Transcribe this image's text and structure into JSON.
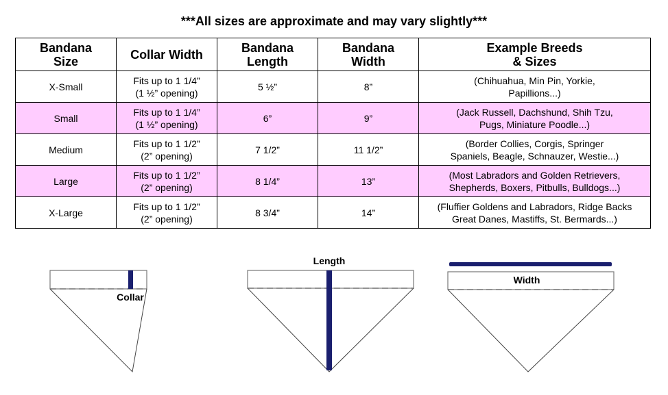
{
  "title": "***All sizes are approximate and may vary slightly***",
  "table": {
    "headers": [
      [
        "Bandana",
        "Size"
      ],
      [
        "Collar Width"
      ],
      [
        "Bandana",
        "Length"
      ],
      [
        "Bandana",
        "Width"
      ],
      [
        "Example Breeds",
        "& Sizes"
      ]
    ],
    "rows": [
      {
        "size": "X-Small",
        "collar": [
          "Fits up to 1 1/4”",
          "(1 ½” opening)"
        ],
        "length": "5 ½”",
        "width": "8”",
        "breeds": [
          "(Chihuahua, Min Pin, Yorkie,",
          "Papillions...)"
        ],
        "highlight": false
      },
      {
        "size": "Small",
        "collar": [
          "Fits up to 1 1/4”",
          "(1 ½” opening)"
        ],
        "length": "6”",
        "width": "9”",
        "breeds": [
          "(Jack Russell, Dachshund, Shih Tzu,",
          "Pugs, Miniature Poodle...)"
        ],
        "highlight": true
      },
      {
        "size": "Medium",
        "collar": [
          "Fits up to 1 1/2”",
          "(2” opening)"
        ],
        "length": "7 1/2”",
        "width": "11 1/2”",
        "breeds": [
          "(Border Collies, Corgis, Springer",
          "Spaniels, Beagle, Schnauzer, Westie...)"
        ],
        "highlight": false
      },
      {
        "size": "Large",
        "collar": [
          "Fits up to 1 1/2”",
          "(2” opening)"
        ],
        "length": "8 1/4”",
        "width": "13”",
        "breeds": [
          "(Most Labradors and Golden Retrievers,",
          "Shepherds, Boxers, Pitbulls, Bulldogs...)"
        ],
        "highlight": true
      },
      {
        "size": "X-Large",
        "collar": [
          "Fits up to 1 1/2”",
          "(2” opening)"
        ],
        "length": "8 3/4”",
        "width": "14”",
        "breeds": [
          "(Fluffier Goldens and Labradors, Ridge Backs",
          "Great Danes, Mastiffs, St. Bermards...)"
        ],
        "highlight": false
      }
    ]
  },
  "diagrams": {
    "collar_label": "Collar",
    "length_label": "Length",
    "width_label": "Width"
  },
  "colors": {
    "highlight": "#ffccff",
    "measure": "#1a1f6e"
  }
}
